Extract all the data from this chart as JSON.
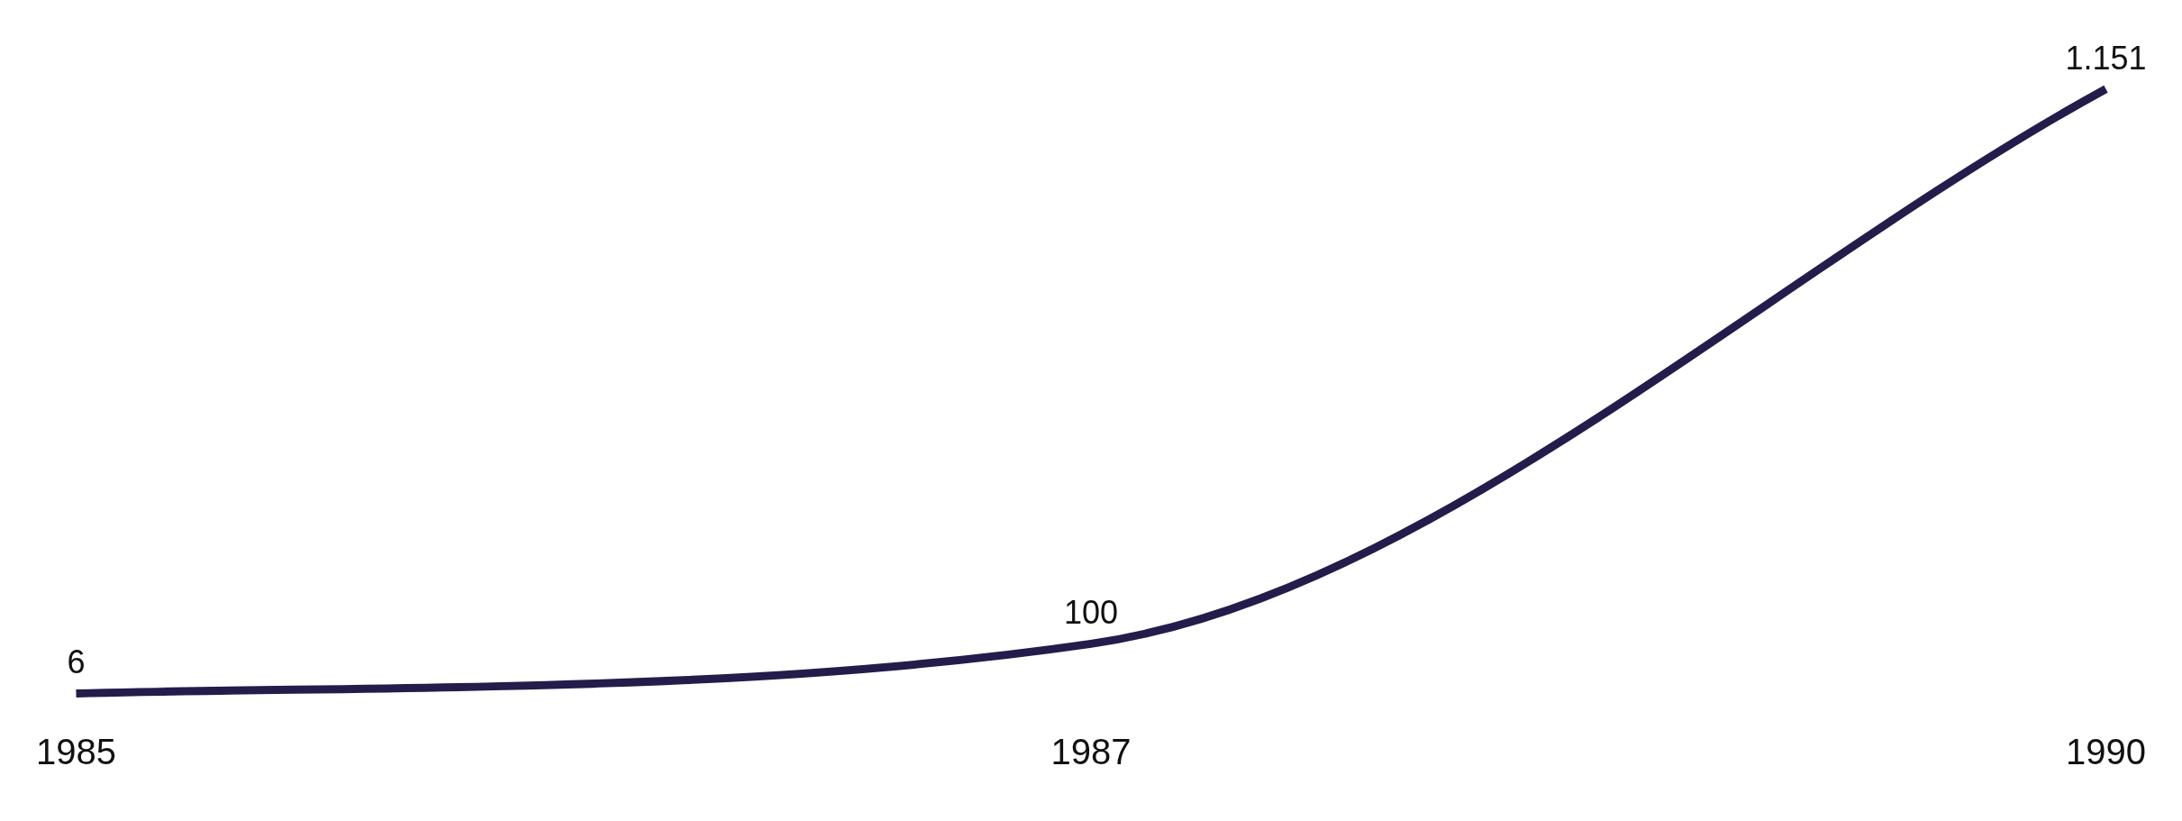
{
  "chart_data": {
    "type": "line",
    "categories": [
      "1985",
      "1987",
      "1990"
    ],
    "series": [
      {
        "color": "#241c4a",
        "values": [
          6,
          100,
          1151
        ],
        "value_labels": [
          "6",
          "100",
          "1.151"
        ]
      }
    ],
    "grid": false,
    "legend": false,
    "marker": "none",
    "line_style": "solid",
    "tick_labels": "x"
  }
}
